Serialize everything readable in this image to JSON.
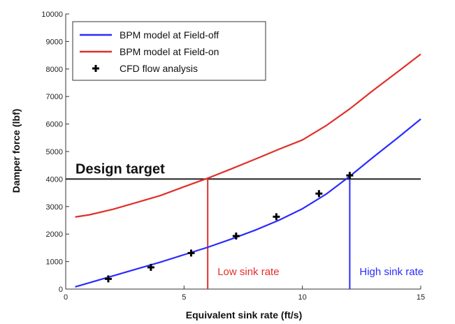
{
  "chart_data": {
    "type": "line",
    "xlabel": "Equivalent sink rate (ft/s)",
    "ylabel": "Damper force (lbf)",
    "xlim": [
      0,
      15
    ],
    "ylim": [
      0,
      10000
    ],
    "xticks": [
      0,
      5,
      10,
      15
    ],
    "yticks": [
      0,
      1000,
      2000,
      3000,
      4000,
      5000,
      6000,
      7000,
      8000,
      9000,
      10000
    ],
    "grid": false,
    "legend_position": "top-left",
    "series": [
      {
        "name": "BPM model at Field-off",
        "kind": "line",
        "color": "#2b2bff",
        "x": [
          0.4,
          1,
          2,
          3,
          4,
          5,
          6,
          7,
          8,
          9,
          10,
          11,
          12,
          13,
          14,
          15
        ],
        "y": [
          80,
          230,
          480,
          730,
          980,
          1250,
          1520,
          1820,
          2140,
          2500,
          2920,
          3450,
          4100,
          4800,
          5480,
          6180
        ]
      },
      {
        "name": "BPM model at Field-on",
        "kind": "line",
        "color": "#e0302a",
        "x": [
          0.4,
          1,
          2,
          3,
          4,
          5,
          6,
          7,
          8,
          9,
          10,
          11,
          12,
          13,
          14,
          15
        ],
        "y": [
          2620,
          2700,
          2900,
          3150,
          3400,
          3720,
          4030,
          4370,
          4720,
          5080,
          5420,
          5940,
          6550,
          7230,
          7880,
          8540
        ]
      },
      {
        "name": "CFD flow analysis",
        "kind": "scatter",
        "color": "#000000",
        "x": [
          1.8,
          3.6,
          5.3,
          7.2,
          8.9,
          10.7,
          12.0
        ],
        "y": [
          370,
          790,
          1310,
          1930,
          2630,
          3470,
          4130
        ]
      }
    ],
    "design_target": {
      "label": "Design target",
      "value": 4000,
      "color": "#222222"
    },
    "markers": [
      {
        "label": "Low sink rate",
        "x": 6.0,
        "color": "#e0302a"
      },
      {
        "label": "High sink rate",
        "x": 12.0,
        "color": "#2b2bff"
      }
    ]
  }
}
